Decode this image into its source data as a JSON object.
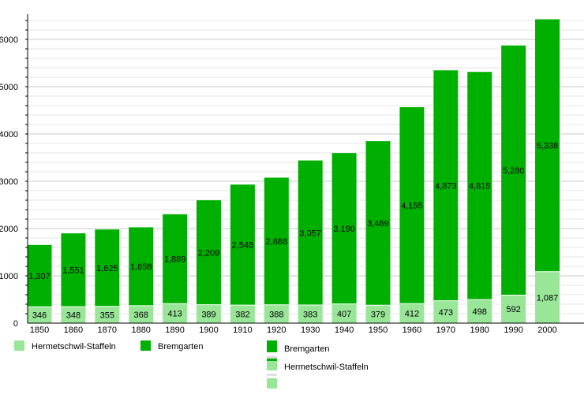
{
  "chart_data": {
    "type": "bar",
    "stacked": true,
    "categories": [
      "1850",
      "1860",
      "1870",
      "1880",
      "1890",
      "1900",
      "1910",
      "1920",
      "1930",
      "1940",
      "1950",
      "1960",
      "1970",
      "1980",
      "1990",
      "2000"
    ],
    "series": [
      {
        "name": "Hermetschwil-Staffeln",
        "color": "#99e699",
        "values": [
          346,
          348,
          355,
          368,
          413,
          389,
          382,
          388,
          383,
          407,
          379,
          412,
          473,
          498,
          592,
          1087
        ]
      },
      {
        "name": "Bremgarten",
        "color": "#00b000",
        "values": [
          1307,
          1551,
          1625,
          1658,
          1889,
          2209,
          2548,
          2688,
          3057,
          3190,
          3469,
          4155,
          4873,
          4815,
          5280,
          5338
        ]
      }
    ],
    "value_labels": {
      "Hermetschwil-Staffeln": [
        "346",
        "348",
        "355",
        "368",
        "413",
        "389",
        "382",
        "388",
        "383",
        "407",
        "379",
        "412",
        "473",
        "498",
        "592",
        "1,087"
      ],
      "Bremgarten": [
        "1,307",
        "1,551",
        "1,625",
        "1,658",
        "1,889",
        "2,209",
        "2,548",
        "2,688",
        "3,057",
        "3,190",
        "3,469",
        "4,155",
        "4,873",
        "4,815",
        "5,280",
        "5,338"
      ]
    },
    "yticks": [
      "0",
      "1000",
      "2000",
      "3000",
      "4000",
      "5000",
      "6000"
    ],
    "ylim": [
      0,
      6500
    ],
    "grid": true,
    "legend": {
      "bottom_row": [
        "Hermetschwil-Staffeln",
        "Bremgarten"
      ],
      "bottom_stack": [
        "Bremgarten",
        "Hermetschwil-Staffeln"
      ]
    }
  }
}
